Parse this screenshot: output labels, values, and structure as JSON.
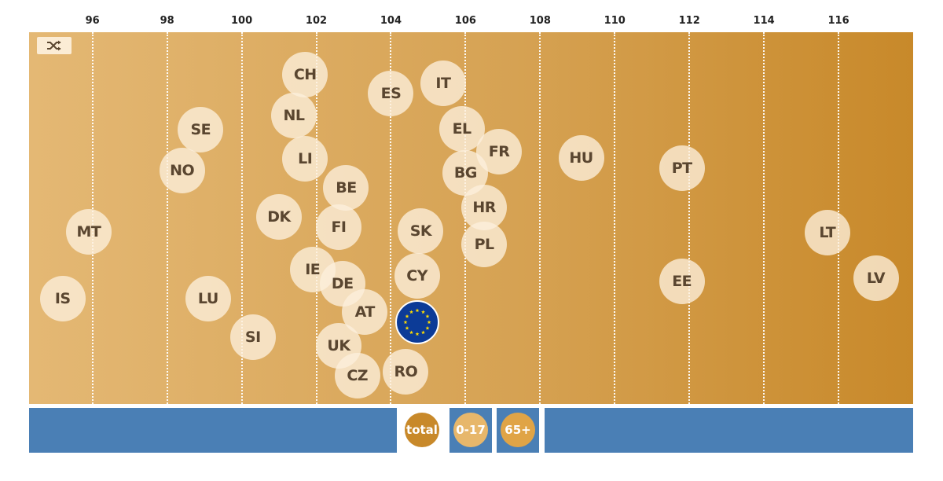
{
  "chart_data": {
    "type": "scatter",
    "x_ticks": [
      96,
      98,
      100,
      102,
      104,
      106,
      108,
      110,
      112,
      114,
      116
    ],
    "xlim": [
      94.3,
      118.0
    ],
    "grid": true,
    "points": [
      {
        "label": "CH",
        "x": 101.7
      },
      {
        "label": "NL",
        "x": 101.4
      },
      {
        "label": "LI",
        "x": 101.7
      },
      {
        "label": "SE",
        "x": 98.9
      },
      {
        "label": "NO",
        "x": 98.4
      },
      {
        "label": "ES",
        "x": 104.0
      },
      {
        "label": "IT",
        "x": 105.4
      },
      {
        "label": "EL",
        "x": 105.9
      },
      {
        "label": "FR",
        "x": 106.9
      },
      {
        "label": "BG",
        "x": 106.0
      },
      {
        "label": "HU",
        "x": 109.1
      },
      {
        "label": "PT",
        "x": 111.8
      },
      {
        "label": "BE",
        "x": 102.8
      },
      {
        "label": "DK",
        "x": 101.0
      },
      {
        "label": "FI",
        "x": 102.6
      },
      {
        "label": "HR",
        "x": 106.5
      },
      {
        "label": "SK",
        "x": 104.8
      },
      {
        "label": "PL",
        "x": 106.5
      },
      {
        "label": "MT",
        "x": 95.9
      },
      {
        "label": "LT",
        "x": 115.7
      },
      {
        "label": "IE",
        "x": 101.9
      },
      {
        "label": "DE",
        "x": 102.7
      },
      {
        "label": "CY",
        "x": 104.7
      },
      {
        "label": "EE",
        "x": 111.8
      },
      {
        "label": "LV",
        "x": 117.0
      },
      {
        "label": "IS",
        "x": 95.2
      },
      {
        "label": "LU",
        "x": 99.1
      },
      {
        "label": "AT",
        "x": 103.3
      },
      {
        "label": "SI",
        "x": 100.3
      },
      {
        "label": "UK",
        "x": 102.6
      },
      {
        "label": "CZ",
        "x": 103.1
      },
      {
        "label": "RO",
        "x": 104.4
      }
    ],
    "eu_point": {
      "label": "EU",
      "x": 104.7
    }
  },
  "controls": {
    "shuffle_icon": "shuffle-icon",
    "filters": [
      {
        "label": "total",
        "color": "#c8892a",
        "active": true
      },
      {
        "label": "0-17",
        "color": "#e7b76b",
        "active": false
      },
      {
        "label": "65+",
        "color": "#e0a446",
        "active": false
      }
    ]
  },
  "colors": {
    "plot_left": "#e4b874",
    "plot_right": "#c8892a",
    "bubble": "#fcf0dc",
    "bubble_text": "#5a4630",
    "eu_blue": "#0c3b97",
    "eu_star": "#ffdd00",
    "filter_bar": "#4a7fb5"
  }
}
